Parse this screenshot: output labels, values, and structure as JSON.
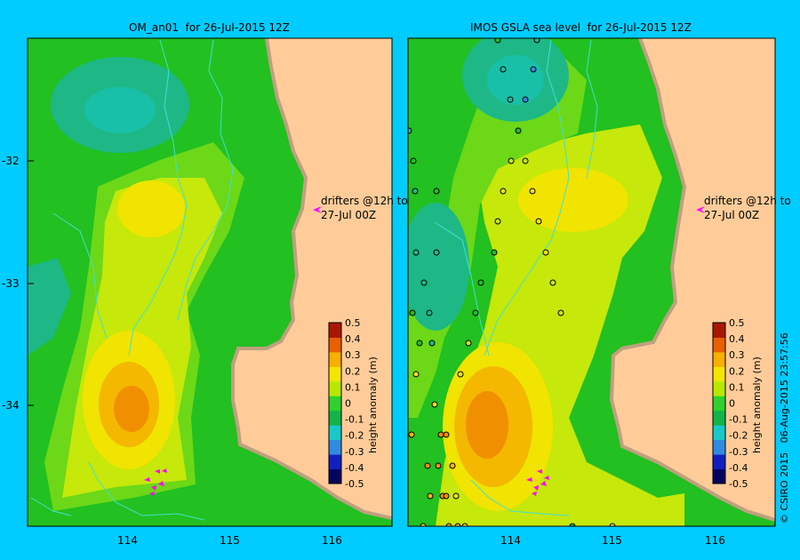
{
  "panels": [
    {
      "title": "OM_an01  for 26-Jul-2015 12Z"
    },
    {
      "title": "IMOS GSLA sea level  for 26-Jul-2015 12Z"
    }
  ],
  "lat_ticks": [
    "-32",
    "-33",
    "-34"
  ],
  "lon_ticks": [
    "114",
    "115",
    "116"
  ],
  "annotation": {
    "line1": "drifters @12h to",
    "line2": "27-Jul 00Z"
  },
  "colorbar": {
    "label": "height anomaly (m)",
    "ticks": [
      "0.5",
      "0.4",
      "0.3",
      "0.2",
      "0.1",
      "0",
      "-0.1",
      "-0.2",
      "-0.3",
      "-0.4",
      "-0.5"
    ],
    "stops": [
      "#04045e",
      "#1020c0",
      "#2e8be0",
      "#19c9c9",
      "#12b34a",
      "#2ed12e",
      "#b8e800",
      "#f5e600",
      "#f7b000",
      "#e86000",
      "#a81800"
    ]
  },
  "colors": {
    "background": "#00ccff",
    "land": "#ffcc99",
    "shore": "#c0a080",
    "river": "#40e0d0",
    "drifter": "#ff00ff",
    "anom_neg_strong": "#1fb79a",
    "anom_neg": "#22c020",
    "anom_zero": "#6cd818",
    "anom_pos": "#c6e80a",
    "anom_pos_mid": "#f0e400",
    "anom_pos_high": "#f5b800",
    "anom_pos_max": "#f09000"
  },
  "footer": "© CSIRO 2015   06-Aug-2015 23:57:56"
}
